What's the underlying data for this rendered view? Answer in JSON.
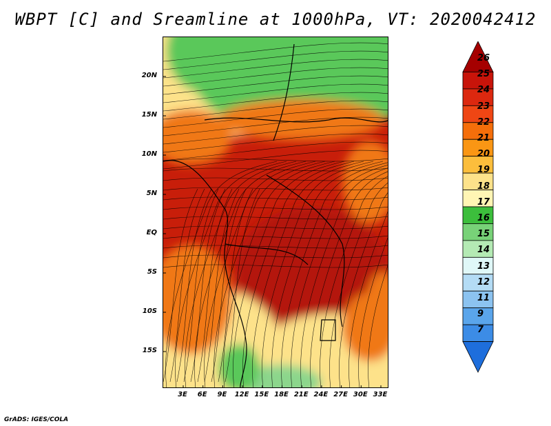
{
  "title": "WBPT [C] and Sreamline at 1000hPa, VT: 2020042412",
  "footer": "GrADS: IGES/COLA",
  "lat_labels": [
    "20N",
    "15N",
    "10N",
    "5N",
    "EQ",
    "5S",
    "10S",
    "15S"
  ],
  "lon_labels": [
    "3E",
    "6E",
    "9E",
    "12E",
    "15E",
    "18E",
    "21E",
    "24E",
    "27E",
    "30E",
    "33E"
  ],
  "colorbar": {
    "labels": [
      "26",
      "25",
      "24",
      "23",
      "22",
      "21",
      "20",
      "19",
      "18",
      "17",
      "16",
      "15",
      "14",
      "13",
      "12",
      "11",
      "9",
      "7"
    ],
    "colors": [
      "#a50000",
      "#c8140a",
      "#dc280f",
      "#ef4614",
      "#f56e0a",
      "#fa9614",
      "#fcbe3c",
      "#fde28a",
      "#fff5b4",
      "#3cbe3c",
      "#78d278",
      "#b4eab4",
      "#e0f8f8",
      "#b4dcf5",
      "#8cc3f0",
      "#5aa5eb",
      "#3c8ce6",
      "#1e6edc"
    ]
  },
  "colors": {
    "warm": "#c81e0a",
    "hot": "#b4140a",
    "orange": "#f07814",
    "yellow": "#fde28a",
    "green": "#5ac85a",
    "lightgreen": "#8cd68c",
    "stream": "#000000"
  }
}
